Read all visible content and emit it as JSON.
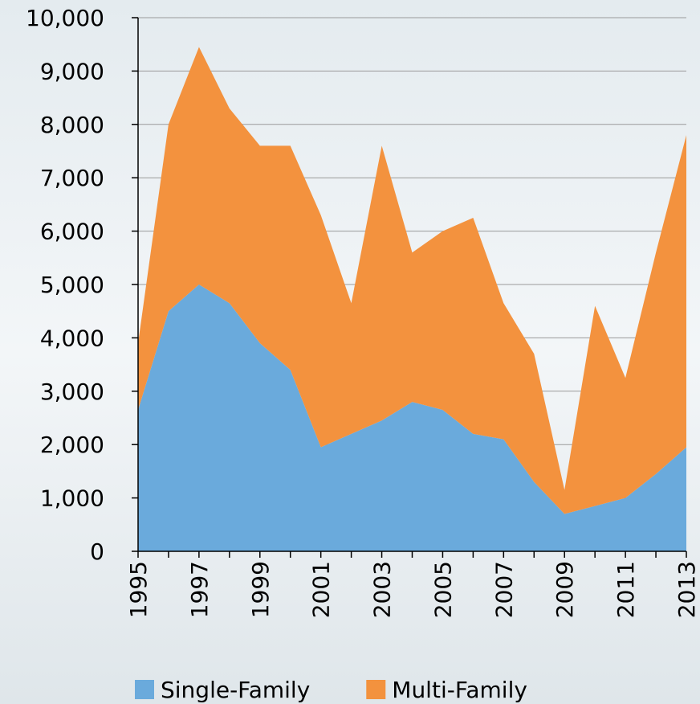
{
  "chart_data": {
    "type": "stacked-area",
    "x": [
      1995,
      1996,
      1997,
      1998,
      1999,
      2000,
      2001,
      2002,
      2003,
      2004,
      2005,
      2006,
      2007,
      2008,
      2009,
      2010,
      2011,
      2012,
      2013
    ],
    "series": [
      {
        "name": "Single-Family",
        "color": "#6aaadc",
        "values": [
          2650,
          4500,
          5000,
          4650,
          3900,
          3400,
          1950,
          2200,
          2450,
          2800,
          2650,
          2200,
          2100,
          1300,
          700,
          850,
          1000,
          1450,
          1950
        ]
      },
      {
        "name": "Multi-Family",
        "color": "#f3923e",
        "values": [
          1250,
          3500,
          4450,
          3650,
          3700,
          4200,
          4350,
          2450,
          5150,
          2800,
          3350,
          4050,
          2550,
          2400,
          450,
          3750,
          2250,
          4150,
          5850
        ]
      }
    ],
    "xlim": [
      1995,
      2013
    ],
    "xticks": [
      1995,
      1997,
      1999,
      2001,
      2003,
      2005,
      2007,
      2009,
      2011,
      2013
    ],
    "ylim": [
      0,
      10000
    ],
    "yticks": [
      0,
      {
        "value": 1000,
        "label": "1,000"
      },
      {
        "value": 2000,
        "label": "2,000"
      },
      {
        "value": 3000,
        "label": "3,000"
      },
      {
        "value": 4000,
        "label": "4,000"
      },
      {
        "value": 5000,
        "label": "5,000"
      },
      {
        "value": 6000,
        "label": "6,000"
      },
      {
        "value": 7000,
        "label": "7,000"
      },
      {
        "value": 8000,
        "label": "8,000"
      },
      {
        "value": 9000,
        "label": "9,000"
      },
      {
        "value": 10000,
        "label": "10,000"
      }
    ],
    "grid": true,
    "legend": "bottom"
  }
}
